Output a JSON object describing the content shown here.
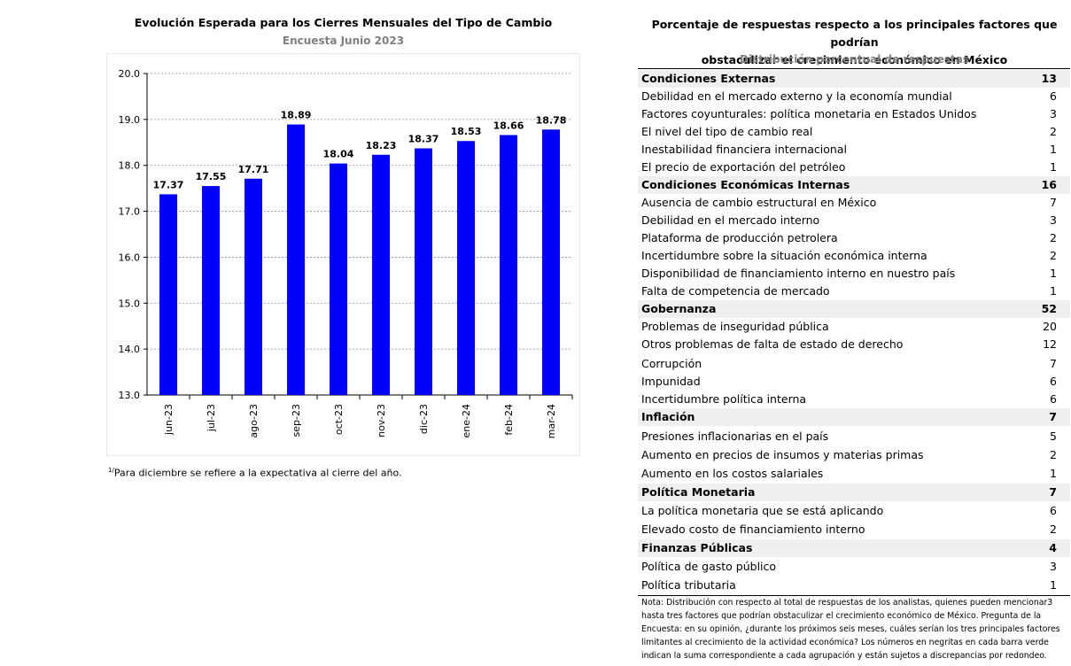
{
  "chart": {
    "title": "Evolución Esperada para los Cierres Mensuales del Tipo de Cambio",
    "subtitle": "Encuesta Junio 2023",
    "footnote_marker": "1/",
    "footnote": "Para diciembre se refiere a la expectativa al cierre del año."
  },
  "chart_data": {
    "type": "bar",
    "title": "Evolución Esperada para los Cierres Mensuales del Tipo de Cambio",
    "subtitle": "Encuesta Junio 2023",
    "categories": [
      "jun-23",
      "jul-23",
      "ago-23",
      "sep-23",
      "oct-23",
      "nov-23",
      "dic-23",
      "ene-24",
      "feb-24",
      "mar-24"
    ],
    "values": [
      17.37,
      17.55,
      17.71,
      18.89,
      18.04,
      18.23,
      18.37,
      18.53,
      18.66,
      18.78
    ],
    "value_labels": [
      "17.37",
      "17.55",
      "17.71",
      "18.89",
      "18.04",
      "18.23",
      "18.37",
      "18.53",
      "18.66",
      "18.78"
    ],
    "yticks": [
      "13.0",
      "14.0",
      "15.0",
      "16.0",
      "17.0",
      "18.0",
      "19.0",
      "20.0"
    ],
    "ylim": [
      13,
      20
    ],
    "xlabel": "",
    "ylabel": "",
    "grid": true,
    "bar_color": "#0000ff"
  },
  "table": {
    "title_line1": "Porcentaje de respuestas respecto a los principales factores que podrían",
    "title_line2": "obstaculizar el crecimiento económico en México",
    "subtitle": "Distribución porcentual de respuestas",
    "rows": [
      {
        "label": "Condiciones Externas",
        "value": "13",
        "group": true
      },
      {
        "label": "Debilidad en el mercado externo y la economía mundial",
        "value": "6",
        "group": false
      },
      {
        "label": "Factores coyunturales: política monetaria en Estados Unidos",
        "value": "3",
        "group": false
      },
      {
        "label": "El nivel del tipo de cambio real",
        "value": "2",
        "group": false
      },
      {
        "label": "Inestabilidad financiera internacional",
        "value": "1",
        "group": false
      },
      {
        "label": "El precio de exportación del petróleo",
        "value": "1",
        "group": false
      },
      {
        "label": "Condiciones Económicas Internas",
        "value": "16",
        "group": true
      },
      {
        "label": "Ausencia de cambio estructural en México",
        "value": "7",
        "group": false
      },
      {
        "label": "Debilidad en el mercado interno",
        "value": "3",
        "group": false
      },
      {
        "label": "Plataforma de producción petrolera",
        "value": "2",
        "group": false
      },
      {
        "label": "Incertidumbre sobre la situación económica interna",
        "value": "2",
        "group": false
      },
      {
        "label": "Disponibilidad de financiamiento interno en nuestro país",
        "value": "1",
        "group": false
      },
      {
        "label": " Falta de competencia de mercado",
        "value": "1",
        "group": false
      },
      {
        "label": "Gobernanza",
        "value": "52",
        "group": true
      },
      {
        "label": "Problemas de inseguridad pública",
        "value": "20",
        "group": false
      },
      {
        "label": "Otros problemas de falta de estado de derecho",
        "value": "12",
        "group": false
      },
      {
        "label": "Corrupción",
        "value": "7",
        "group": false
      },
      {
        "label": "Impunidad",
        "value": "6",
        "group": false
      },
      {
        "label": "Incertidumbre política interna",
        "value": "6",
        "group": false
      },
      {
        "label": "Inflación",
        "value": "7",
        "group": true
      },
      {
        "label": "Presiones inflacionarias en el país",
        "value": "5",
        "group": false
      },
      {
        "label": "Aumento en precios de insumos y materias primas",
        "value": "2",
        "group": false
      },
      {
        "label": "Aumento en los costos salariales",
        "value": "1",
        "group": false
      },
      {
        "label": "Política Monetaria",
        "value": "7",
        "group": true
      },
      {
        "label": "La política monetaria que se está aplicando",
        "value": "6",
        "group": false
      },
      {
        "label": "Elevado costo de financiamiento interno",
        "value": "2",
        "group": false
      },
      {
        "label": "Finanzas Públicas",
        "value": "4",
        "group": true
      },
      {
        "label": "Política de gasto público",
        "value": "3",
        "group": false
      },
      {
        "label": "Política tributaria",
        "value": "1",
        "group": false
      }
    ],
    "note_line1": "Nota: Distribución con respecto al total de respuestas de los analistas, quienes pueden mencionar3",
    "note_line2": "hasta tres factores que podrían obstaculizar el crecimiento económico de México. Pregunta de la",
    "note_line3": "Encuesta: en su opinión, ¿durante los próximos seis meses, cuáles serían los tres principales factores",
    "note_line4": "limitantes al crecimiento de la actividad económica? Los números en negritas en cada barra verde",
    "note_line5": "indican la suma correspondiente a cada agrupación y están sujetos a discrepancias por redondeo."
  }
}
